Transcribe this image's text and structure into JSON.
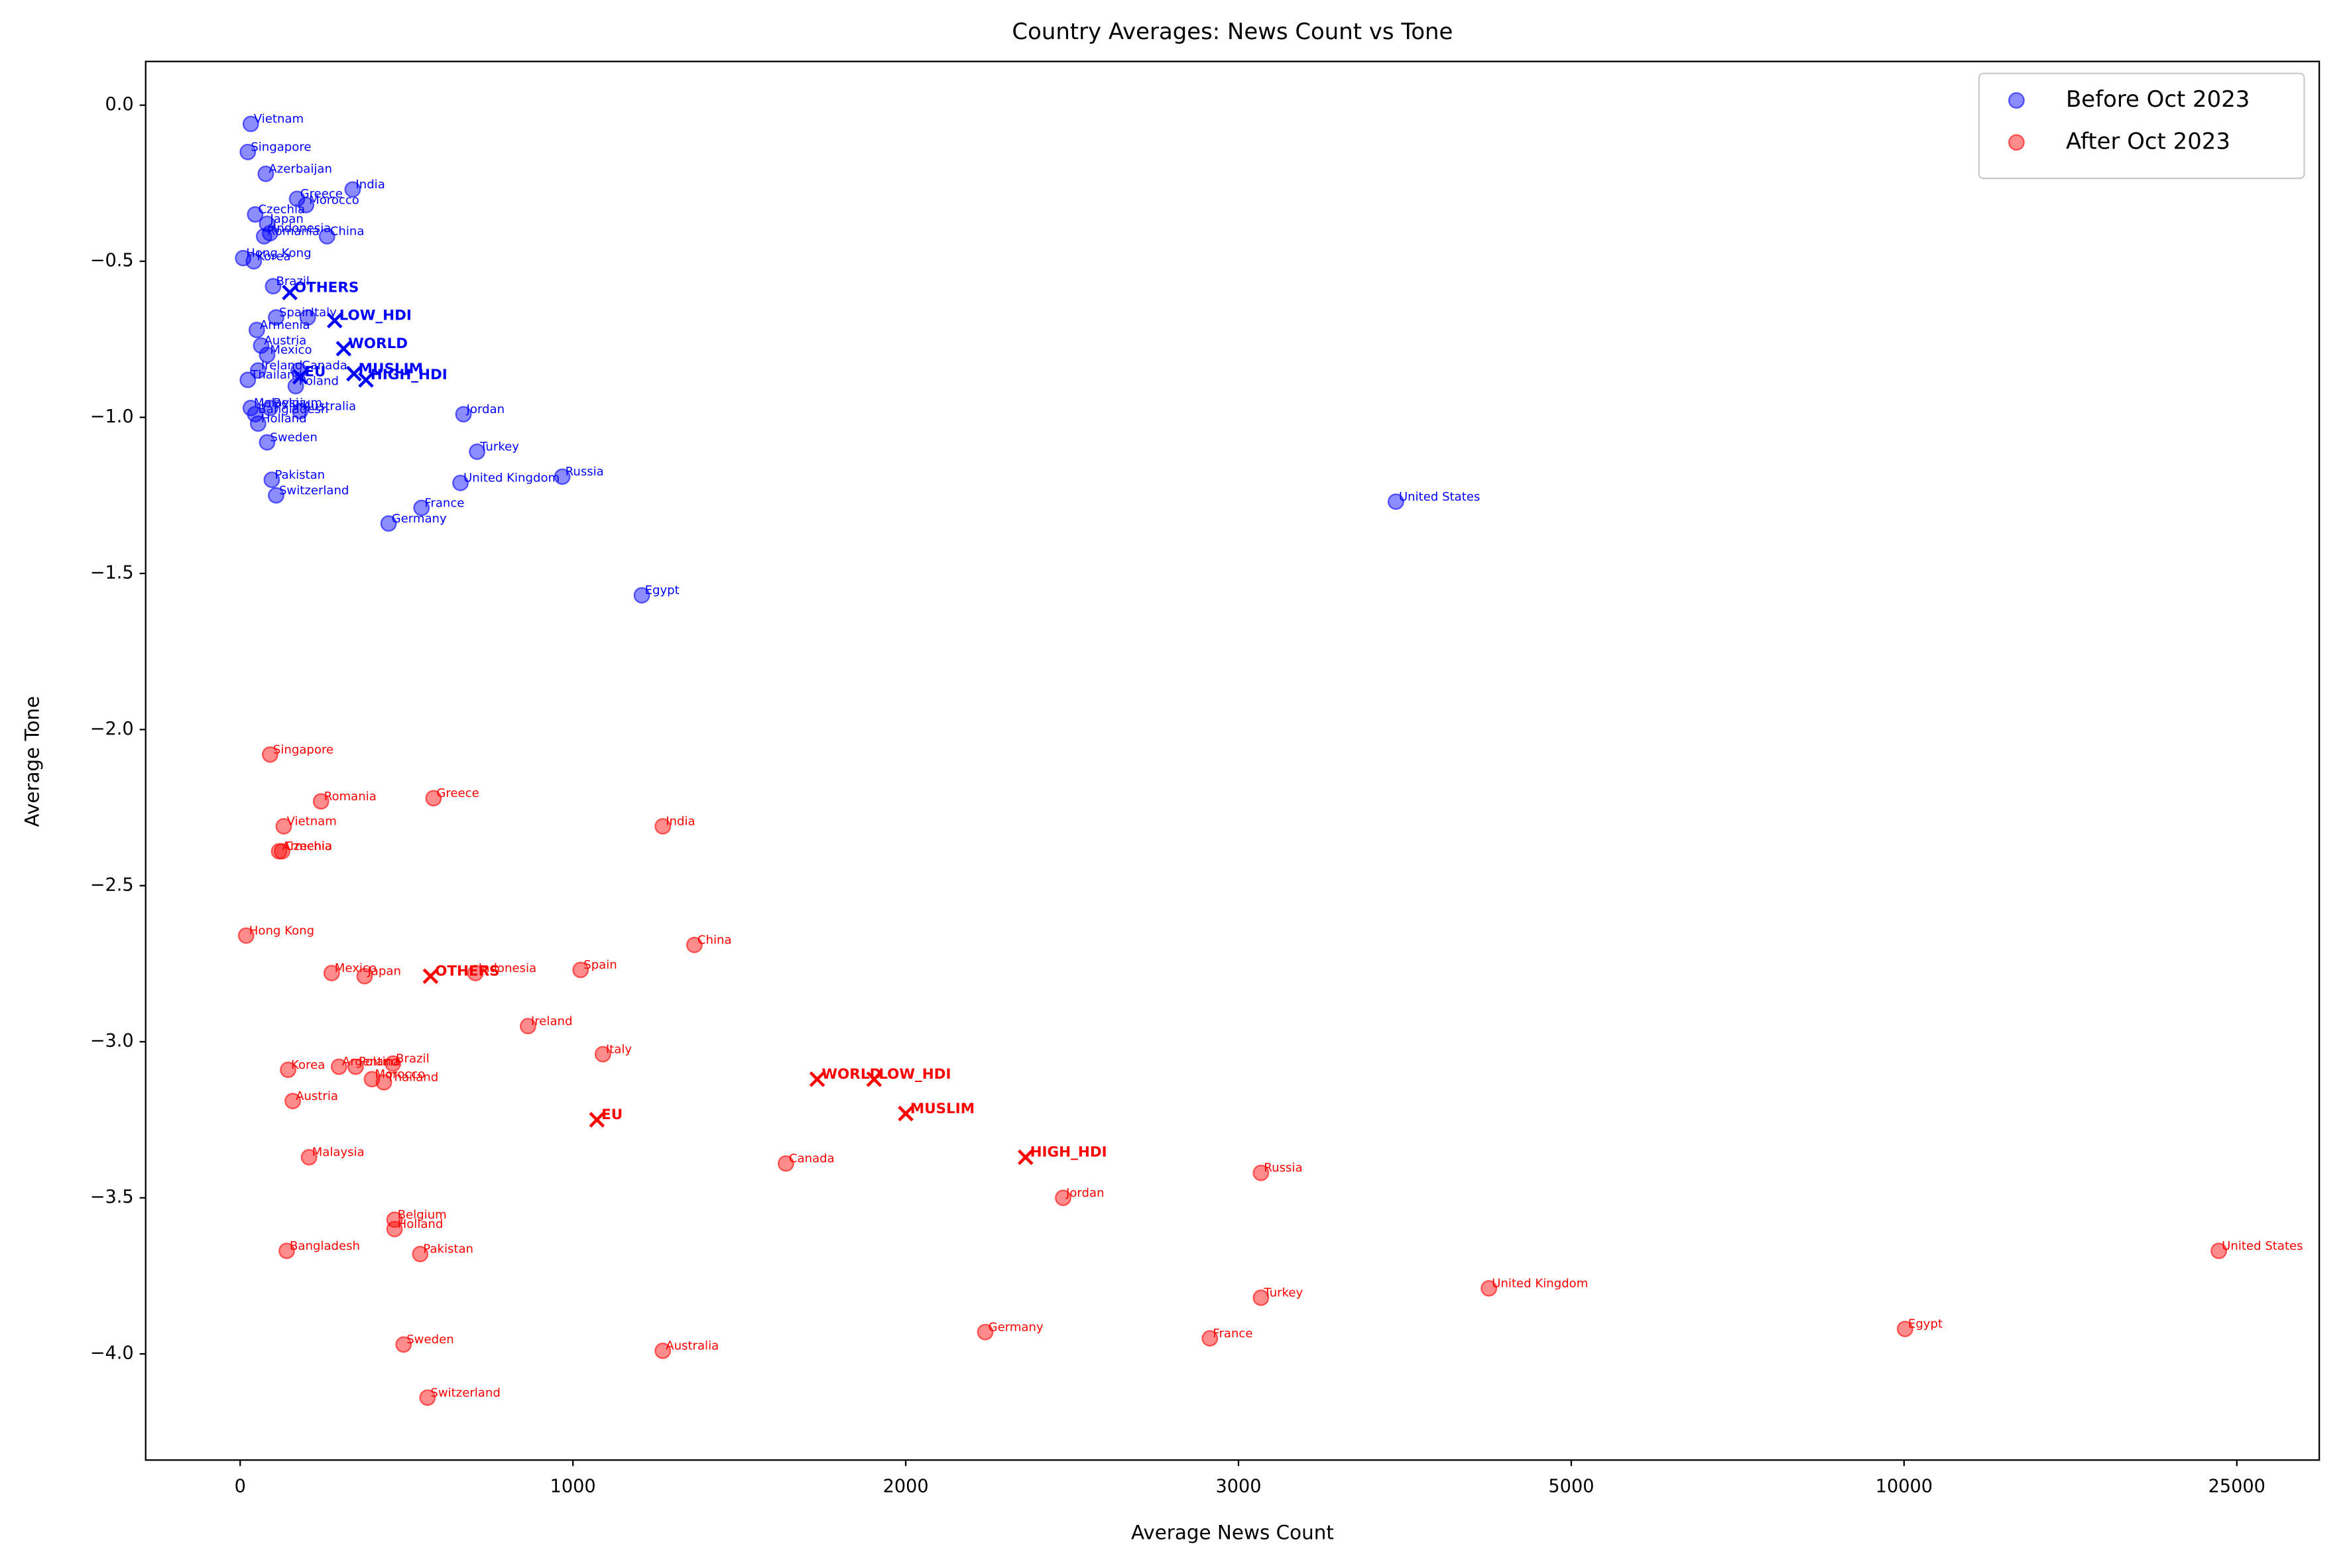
{
  "chart_data": {
    "type": "scatter",
    "title": "Country Averages: News Count vs Tone",
    "x_label": "Average News Count",
    "y_label": "Average Tone",
    "xscale": "segmented",
    "xlim": [
      -284,
      28716
    ],
    "xticks": [
      0,
      1000,
      2000,
      3000,
      5000,
      10000,
      25000
    ],
    "ylim": [
      -4.34,
      0.14
    ],
    "yticks": [
      {
        "value": 0,
        "label": "0.0"
      },
      {
        "value": -0.5,
        "label": "−0.5"
      },
      {
        "value": -1,
        "label": "−1.0"
      },
      {
        "value": -1.5,
        "label": "−1.5"
      },
      {
        "value": -2,
        "label": "−2.0"
      },
      {
        "value": -2.5,
        "label": "−2.5"
      },
      {
        "value": -3,
        "label": "−3.0"
      },
      {
        "value": -3.5,
        "label": "−3.5"
      },
      {
        "value": -4,
        "label": "−4.0"
      }
    ],
    "legend": "upper right",
    "series": [
      {
        "name": "Before Oct 2023",
        "color": "blue",
        "labels": [
          "Vietnam",
          "Singapore",
          "Azerbaijan",
          "India",
          "Greece",
          "Morocco",
          "Czechia",
          "Japan",
          "Indonesia",
          "Romania",
          "China",
          "Hong Kong",
          "Korea",
          "Brazil",
          "Spain",
          "Italy",
          "Armenia",
          "Austria",
          "Mexico",
          "Ireland",
          "Canada",
          "Thailand",
          "Poland",
          "Malaysia",
          "Belgium",
          "Australia",
          "Bangladesh",
          "Holland",
          "Jordan",
          "Turkey",
          "Sweden",
          "Pakistan",
          "Switzerland",
          "United Kingdom",
          "Russia",
          "France",
          "Germany",
          "United States",
          "Egypt"
        ],
        "x": [
          32,
          23,
          77,
          338,
          171,
          198,
          45,
          81,
          90,
          72,
          261,
          9,
          41,
          99,
          108,
          203,
          50,
          63,
          81,
          54,
          176,
          23,
          167,
          32,
          90,
          180,
          45,
          54,
          671,
          712,
          81,
          95,
          108,
          662,
          968,
          545,
          446,
          3946,
          1207
        ],
        "values": [
          -0.06,
          -0.15,
          -0.22,
          -0.27,
          -0.3,
          -0.32,
          -0.35,
          -0.38,
          -0.41,
          -0.42,
          -0.42,
          -0.49,
          -0.5,
          -0.58,
          -0.68,
          -0.68,
          -0.72,
          -0.77,
          -0.8,
          -0.85,
          -0.85,
          -0.88,
          -0.9,
          -0.97,
          -0.97,
          -0.98,
          -0.99,
          -1.02,
          -0.99,
          -1.11,
          -1.08,
          -1.2,
          -1.25,
          -1.21,
          -1.19,
          -1.29,
          -1.34,
          -1.27,
          -1.57
        ],
        "aggregates": {
          "labels": [
            "OTHERS",
            "LOW_HDI",
            "WORLD",
            "EU",
            "MUSLIM",
            "HIGH_HDI"
          ],
          "x": [
            149,
            284,
            311,
            180,
            342,
            378
          ],
          "values": [
            -0.6,
            -0.69,
            -0.78,
            -0.87,
            -0.86,
            -0.88
          ]
        }
      },
      {
        "name": "After Oct 2023",
        "color": "red",
        "labels": [
          "Singapore",
          "Romania",
          "Greece",
          "Vietnam",
          "India",
          "Armenia",
          "Czechia",
          "Hong Kong",
          "China",
          "Mexico",
          "Japan",
          "Indonesia",
          "Spain",
          "Ireland",
          "Italy",
          "Korea",
          "Argentina",
          "Poland",
          "Brazil",
          "Morocco",
          "Thailand",
          "Austria",
          "Malaysia",
          "Canada",
          "Jordan",
          "Russia",
          "Belgium",
          "Holland",
          "Bangladesh",
          "Pakistan",
          "United States",
          "United Kingdom",
          "Turkey",
          "Sweden",
          "Germany",
          "France",
          "Egypt",
          "Australia",
          "Switzerland"
        ],
        "x": [
          90,
          243,
          581,
          131,
          1270,
          117,
          126,
          18,
          1365,
          275,
          374,
          707,
          1023,
          865,
          1090,
          144,
          297,
          347,
          459,
          396,
          432,
          158,
          207,
          1640,
          2473,
          3135,
          464,
          464,
          140,
          541,
          24189,
          4505,
          3135,
          491,
          2239,
          2914,
          10045,
          1270,
          563
        ],
        "values": [
          -2.08,
          -2.23,
          -2.22,
          -2.31,
          -2.31,
          -2.39,
          -2.39,
          -2.66,
          -2.69,
          -2.78,
          -2.79,
          -2.78,
          -2.77,
          -2.95,
          -3.04,
          -3.09,
          -3.08,
          -3.08,
          -3.07,
          -3.12,
          -3.13,
          -3.19,
          -3.37,
          -3.39,
          -3.5,
          -3.42,
          -3.57,
          -3.6,
          -3.67,
          -3.68,
          -3.67,
          -3.79,
          -3.82,
          -3.97,
          -3.93,
          -3.95,
          -3.92,
          -3.99,
          -4.14
        ],
        "aggregates": {
          "labels": [
            "OTHERS",
            "EU",
            "WORLD",
            "LOW_HDI",
            "MUSLIM",
            "HIGH_HDI"
          ],
          "x": [
            572,
            1072,
            1734,
            1905,
            2000,
            2360
          ],
          "values": [
            -2.79,
            -3.25,
            -3.12,
            -3.12,
            -3.23,
            -3.37
          ]
        }
      }
    ]
  }
}
